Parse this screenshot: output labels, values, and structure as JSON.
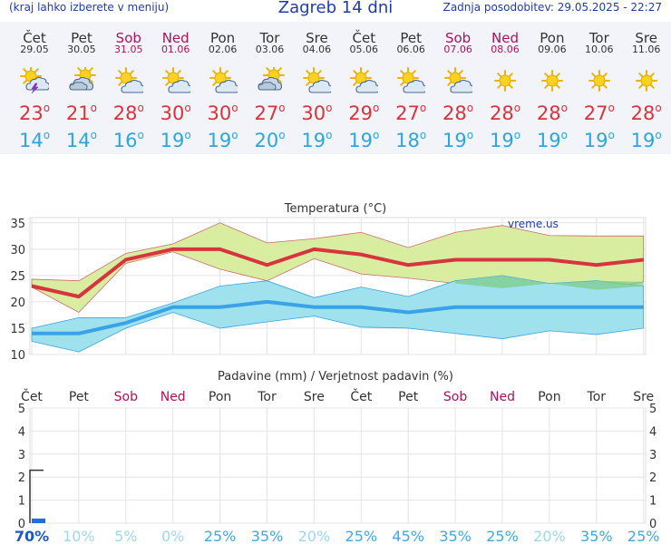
{
  "header": {
    "left_note": "(kraj lahko izberete v meniju)",
    "title": "Zagreb 14 dni",
    "updated": "Zadnja posodobitev: 29.05.2025 - 22:27"
  },
  "forecast": [
    {
      "day": "Čet",
      "date": "29.05",
      "weekend": false,
      "icon": "thunderstorm-icon",
      "tmax": "23",
      "tmin": "14"
    },
    {
      "day": "Pet",
      "date": "30.05",
      "weekend": false,
      "icon": "cloudy-icon",
      "tmax": "21",
      "tmin": "14"
    },
    {
      "day": "Sob",
      "date": "31.05",
      "weekend": true,
      "icon": "partly-sunny-icon",
      "tmax": "28",
      "tmin": "16"
    },
    {
      "day": "Ned",
      "date": "01.06",
      "weekend": true,
      "icon": "partly-sunny-icon",
      "tmax": "30",
      "tmin": "19"
    },
    {
      "day": "Pon",
      "date": "02.06",
      "weekend": false,
      "icon": "partly-sunny-icon",
      "tmax": "30",
      "tmin": "19"
    },
    {
      "day": "Tor",
      "date": "03.06",
      "weekend": false,
      "icon": "cloudy-icon",
      "tmax": "27",
      "tmin": "20"
    },
    {
      "day": "Sre",
      "date": "04.06",
      "weekend": false,
      "icon": "partly-sunny-icon",
      "tmax": "30",
      "tmin": "19"
    },
    {
      "day": "Čet",
      "date": "05.06",
      "weekend": false,
      "icon": "partly-sunny-icon",
      "tmax": "29",
      "tmin": "19"
    },
    {
      "day": "Pet",
      "date": "06.06",
      "weekend": false,
      "icon": "partly-sunny-icon",
      "tmax": "27",
      "tmin": "18"
    },
    {
      "day": "Sob",
      "date": "07.06",
      "weekend": true,
      "icon": "partly-sunny-icon",
      "tmax": "28",
      "tmin": "19"
    },
    {
      "day": "Ned",
      "date": "08.06",
      "weekend": true,
      "icon": "sun-icon",
      "tmax": "28",
      "tmin": "19"
    },
    {
      "day": "Pon",
      "date": "09.06",
      "weekend": false,
      "icon": "sun-icon",
      "tmax": "28",
      "tmin": "19"
    },
    {
      "day": "Tor",
      "date": "10.06",
      "weekend": false,
      "icon": "sun-icon",
      "tmax": "27",
      "tmin": "19"
    },
    {
      "day": "Sre",
      "date": "11.06",
      "weekend": false,
      "icon": "sun-icon",
      "tmax": "28",
      "tmin": "19"
    }
  ],
  "colors": {
    "max_line": "#d7343f",
    "min_line": "#3aa2e6",
    "max_band": "#d8eda0",
    "min_band": "#9fe2ee",
    "overlap": "#7ecc8a",
    "weekend": "#b0105a"
  },
  "chart_data": [
    {
      "type": "line",
      "title": "Temperatura (°C)",
      "watermark": "vreme.us",
      "ylim": [
        10,
        36
      ],
      "yticks": [
        10,
        15,
        20,
        25,
        30,
        35
      ],
      "grid": true,
      "series": [
        {
          "values": [
            23,
            21,
            28,
            30,
            30,
            27,
            30,
            29,
            27,
            28,
            28,
            28,
            27,
            28
          ]
        },
        {
          "values": [
            14,
            14,
            16,
            19,
            19,
            20,
            19,
            19,
            18,
            19,
            19,
            19,
            19,
            19
          ]
        }
      ],
      "max_band": {
        "upper": [
          24.3,
          24,
          29.2,
          31,
          35,
          31.2,
          32,
          33.2,
          30.3,
          33.2,
          34.5,
          32.6,
          32.5,
          32.5
        ],
        "lower": [
          22.8,
          18,
          27.3,
          29.5,
          26.2,
          24,
          28.2,
          25.3,
          24.5,
          23.5,
          22.6,
          23.5,
          22.3,
          23.8
        ]
      },
      "min_band": {
        "upper": [
          15,
          17,
          17,
          19.8,
          23,
          24,
          20.8,
          22.8,
          21,
          24,
          25,
          23.5,
          24,
          23
        ],
        "lower": [
          12.5,
          10.5,
          15,
          18,
          15,
          16.2,
          17.3,
          15.2,
          15,
          14,
          13,
          14.5,
          13.8,
          15
        ]
      }
    },
    {
      "type": "bar",
      "title": "Padavine (mm) / Verjetnost padavin (%)",
      "categories": [
        "Čet",
        "Pet",
        "Sob",
        "Ned",
        "Pon",
        "Tor",
        "Sre",
        "Čet",
        "Pet",
        "Sob",
        "Ned",
        "Pon",
        "Tor",
        "Sre"
      ],
      "weekend": [
        false,
        false,
        true,
        true,
        false,
        false,
        false,
        false,
        false,
        true,
        true,
        false,
        false,
        false
      ],
      "ylim": [
        0,
        5
      ],
      "yticks": [
        0,
        1,
        2,
        3,
        4,
        5
      ],
      "precip_mm": [
        0.2,
        0,
        0,
        0,
        0,
        0,
        0,
        0,
        0,
        0,
        0,
        0,
        0,
        0
      ],
      "probability": [
        "70%",
        "10%",
        "5%",
        "0%",
        "25%",
        "35%",
        "20%",
        "25%",
        "45%",
        "35%",
        "25%",
        "20%",
        "35%",
        "25%"
      ],
      "probability_colors": [
        "#1f58c7",
        "#9fd8f2",
        "#9fd8f2",
        "#9fd8f2",
        "#3fa9e8",
        "#3fa9e8",
        "#9fd8f2",
        "#3fa9e8",
        "#3fa9e8",
        "#3fa9e8",
        "#3fa9e8",
        "#9fd8f2",
        "#3fa9e8",
        "#3fa9e8"
      ],
      "probability_bold": [
        true,
        false,
        false,
        false,
        false,
        false,
        false,
        false,
        false,
        false,
        false,
        false,
        false,
        false
      ]
    }
  ]
}
